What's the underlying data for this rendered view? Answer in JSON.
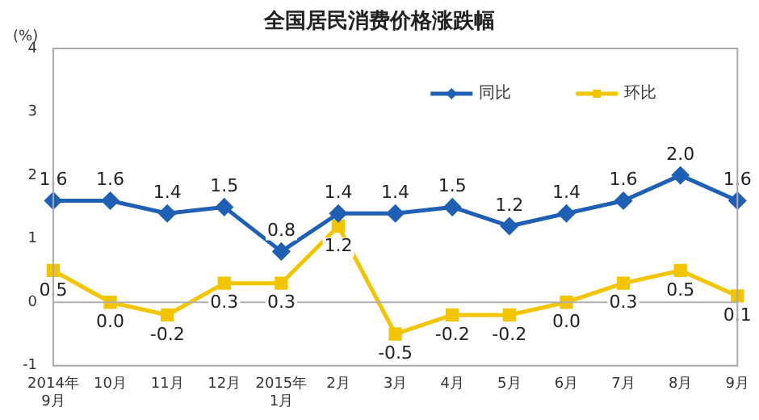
{
  "chart_data": {
    "type": "line",
    "title": "全国居民消费价格涨跌幅",
    "ylabel": "(%)",
    "categories": [
      "2014年\n9月",
      "10月",
      "11月",
      "12月",
      "2015年\n1月",
      "2月",
      "3月",
      "4月",
      "5月",
      "6月",
      "7月",
      "8月",
      "9月"
    ],
    "series": [
      {
        "name": "同比",
        "color": "#1f5fb4",
        "marker": "diamond",
        "values": [
          1.6,
          1.6,
          1.4,
          1.5,
          0.8,
          1.4,
          1.4,
          1.5,
          1.2,
          1.4,
          1.6,
          2.0,
          1.6
        ],
        "value_labels": [
          "1.6",
          "1.6",
          "1.4",
          "1.5",
          "0.8",
          "1.4",
          "1.4",
          "1.5",
          "1.2",
          "1.4",
          "1.6",
          "2.0",
          "1.6"
        ]
      },
      {
        "name": "环比",
        "color": "#f2c500",
        "marker": "square",
        "values": [
          0.5,
          0.0,
          -0.2,
          0.3,
          0.3,
          1.2,
          -0.5,
          -0.2,
          -0.2,
          0.0,
          0.3,
          0.5,
          0.1
        ],
        "value_labels": [
          "0.5",
          "0.0",
          "-0.2",
          "0.3",
          "0.3",
          "1.2",
          "-0.5",
          "-0.2",
          "-0.2",
          "0.0",
          "0.3",
          "0.5",
          "0.1"
        ]
      }
    ],
    "ylim": [
      -1,
      4
    ],
    "yticks": [
      -1,
      0,
      1,
      2,
      3,
      4
    ],
    "grid": false,
    "legend": "top right",
    "ref_lines": [
      {
        "axis": "y",
        "value": 0,
        "color": "#b0b0b0"
      }
    ]
  }
}
